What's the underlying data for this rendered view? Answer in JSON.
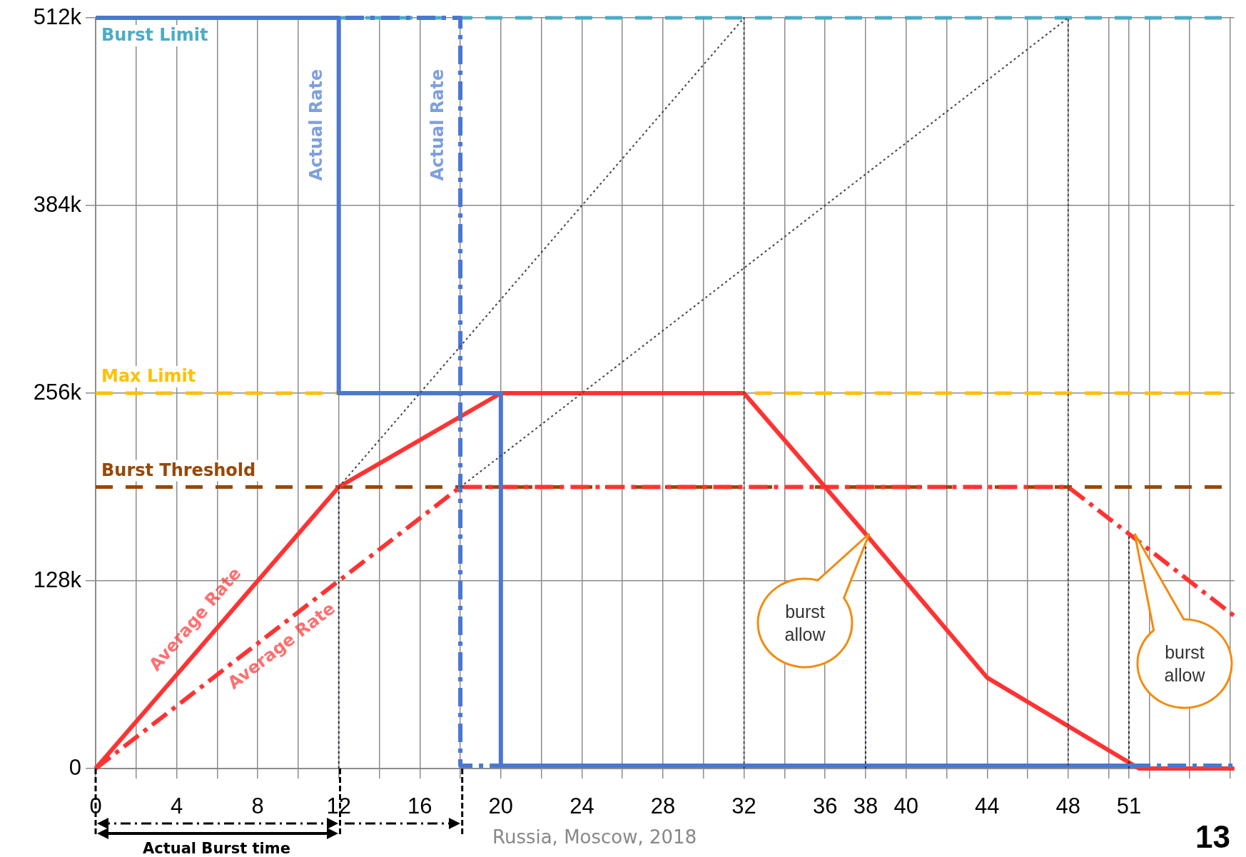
{
  "chart_data": {
    "type": "line",
    "series": [
      {
        "type": "line",
        "name": "Actual Rate",
        "color": "#4a78d0",
        "line_style": "solid",
        "x": [
          0,
          12,
          12,
          20,
          20,
          51.5
        ],
        "values": [
          512,
          512,
          256,
          256,
          2,
          2
        ]
      },
      {
        "type": "line",
        "name": "Actual Rate",
        "color": "#4a78d0",
        "line_style": "dashed",
        "x": [
          0,
          18,
          18,
          56.2
        ],
        "values": [
          512,
          512,
          2,
          2
        ]
      },
      {
        "type": "line",
        "name": "Average Rate",
        "color": "#ff3333",
        "line_style": "solid",
        "x": [
          0,
          12,
          20,
          32,
          38,
          44,
          51.5,
          56.2
        ],
        "values": [
          0,
          192,
          256,
          256,
          160,
          62,
          0,
          0
        ]
      },
      {
        "type": "line",
        "name": "Average Rate",
        "color": "#ff3333",
        "line_style": "dashed",
        "x": [
          0,
          18,
          48,
          51,
          56.2
        ],
        "values": [
          0,
          192,
          192,
          160,
          104
        ]
      },
      {
        "type": "line",
        "color": "#444444",
        "line_style": "dotted",
        "x": [
          12,
          32,
          32
        ],
        "values": [
          192,
          512,
          0
        ]
      },
      {
        "type": "line",
        "color": "#444444",
        "line_style": "dotted",
        "x": [
          18,
          48,
          48
        ],
        "values": [
          192,
          512,
          0
        ]
      },
      {
        "type": "line",
        "color": "#1f2d3d",
        "line_style": "dotted",
        "x": [
          12,
          12
        ],
        "values": [
          0,
          192
        ]
      },
      {
        "type": "line",
        "color": "#1f2d3d",
        "line_style": "dotted",
        "x": [
          38,
          38
        ],
        "values": [
          0,
          160
        ]
      },
      {
        "type": "line",
        "color": "#1f2d3d",
        "line_style": "dotted",
        "x": [
          51,
          51
        ],
        "values": [
          0,
          160
        ]
      }
    ],
    "xlim": [
      0,
      56.2
    ],
    "xticks": [
      0,
      {
        "value": 2,
        "label": null
      },
      4,
      {
        "value": 6,
        "label": null
      },
      8,
      {
        "value": 10,
        "label": null
      },
      12,
      {
        "value": 14,
        "label": null
      },
      16,
      {
        "value": 18,
        "label": null
      },
      20,
      {
        "value": 22,
        "label": null
      },
      24,
      {
        "value": 26,
        "label": null
      },
      28,
      {
        "value": 30,
        "label": null
      },
      32,
      {
        "value": 34,
        "label": null
      },
      36,
      38,
      40,
      {
        "value": 42,
        "label": null
      },
      44,
      {
        "value": 46,
        "label": null
      },
      48,
      {
        "value": 50,
        "label": null
      },
      51,
      {
        "value": 52,
        "label": null
      },
      {
        "value": 54,
        "label": null
      },
      {
        "value": 56,
        "label": null
      }
    ],
    "ylim": [
      0,
      512
    ],
    "yticks": [
      0,
      {
        "value": 128,
        "label": "128k"
      },
      {
        "value": 256,
        "label": "256k"
      },
      {
        "value": 384,
        "label": "384k"
      },
      {
        "value": 512,
        "label": "512k"
      }
    ],
    "ref_lines": [
      {
        "axis": "y",
        "value": 512,
        "label": "Burst Limit",
        "color": "#4bacc6",
        "line_style": "dashed"
      },
      {
        "axis": "y",
        "value": 256,
        "label": "Max Limit",
        "color": "#ffc000",
        "line_style": "dashed"
      },
      {
        "axis": "y",
        "value": 192,
        "label": "Burst Threshold",
        "color": "#974806",
        "line_style": "dashed"
      }
    ],
    "annotations": [
      "burst allow",
      "burst allow",
      "Actual Burst time",
      "Russia, Moscow, 2018",
      "13"
    ],
    "grid": true,
    "legend": false,
    "marker": "none"
  }
}
